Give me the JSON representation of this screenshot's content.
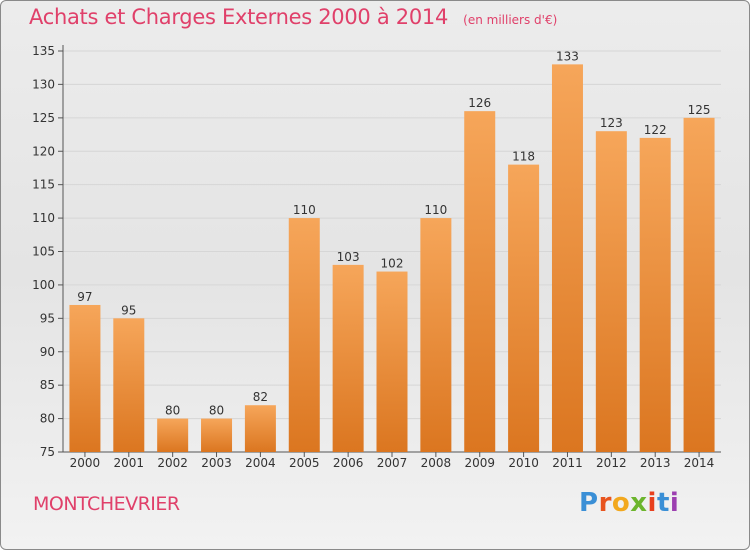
{
  "header": {
    "title": "Achats et Charges Externes 2000 à 2014",
    "unit": "(en milliers d'€)"
  },
  "footer": {
    "commune": "MONTCHEVRIER",
    "logo_text": "Proxiti",
    "logo_colors": [
      "#3a8fd6",
      "#e8541e",
      "#f2a81e",
      "#6cb52d",
      "#e8401e",
      "#3a8fd6",
      "#9c3fb0"
    ]
  },
  "colors": {
    "title": "#e0406a",
    "bar_light": "#f6a65a",
    "bar_dark": "#db7620",
    "grid": "#d6d6d6",
    "axis_text": "#333333"
  },
  "chart_data": {
    "type": "bar",
    "categories": [
      "2000",
      "2001",
      "2002",
      "2003",
      "2004",
      "2005",
      "2006",
      "2007",
      "2008",
      "2009",
      "2010",
      "2011",
      "2012",
      "2013",
      "2014"
    ],
    "values": [
      97,
      95,
      80,
      80,
      82,
      110,
      103,
      102,
      110,
      126,
      118,
      133,
      123,
      122,
      125
    ],
    "ylim": [
      75,
      135
    ],
    "yticks": [
      75,
      80,
      85,
      90,
      95,
      100,
      105,
      110,
      115,
      120,
      125,
      130,
      135
    ],
    "grid": true,
    "data_labels": true
  }
}
